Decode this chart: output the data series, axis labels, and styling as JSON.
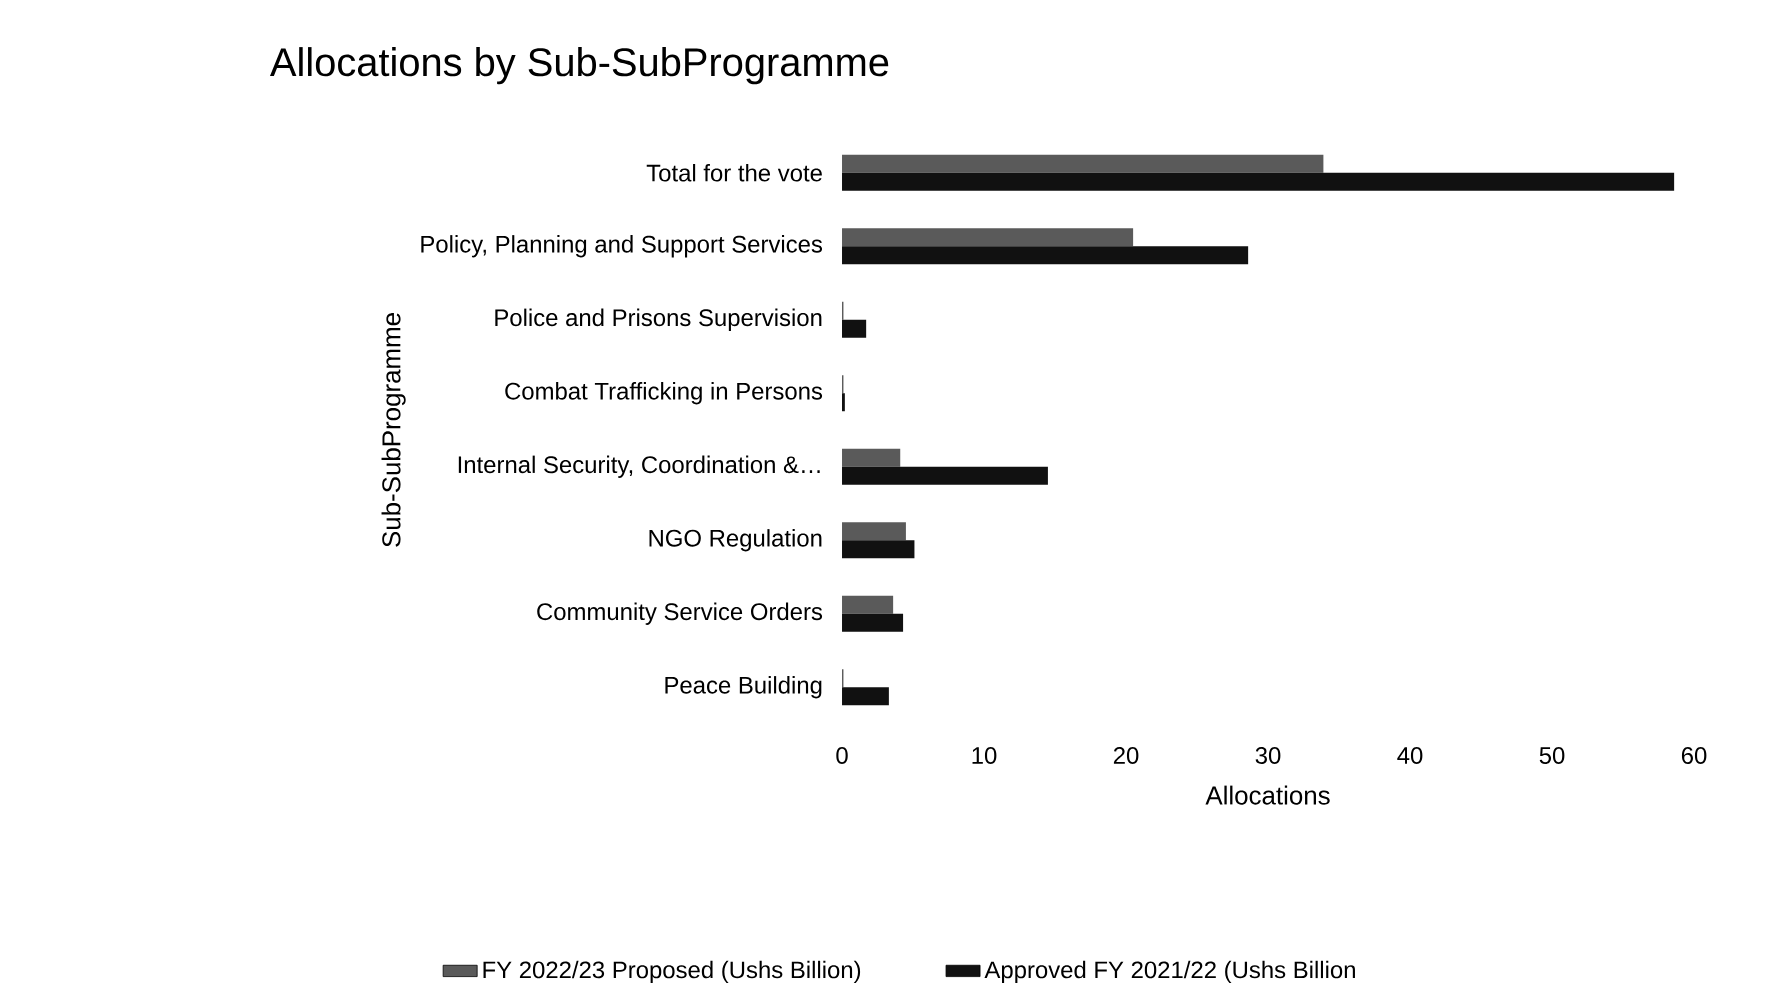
{
  "chart_data": {
    "type": "bar",
    "orientation": "horizontal",
    "title": "Allocations by Sub-SubProgramme",
    "xlabel": "Allocations",
    "ylabel": "Sub-SubProgramme",
    "categories": [
      "Total for the vote",
      "Policy, Planning and Support Services",
      "Police and Prisons Supervision",
      "Combat Trafficking in Persons",
      "Internal Security, Coordination &…",
      "NGO Regulation",
      "Community Service Orders",
      "Peace Building"
    ],
    "series": [
      {
        "name": "FY 2022/23 Proposed (Ushs Billion)",
        "color": "#5a5a5a",
        "values": [
          33.9,
          20.5,
          0.1,
          0.1,
          4.1,
          4.5,
          3.6,
          0.1
        ]
      },
      {
        "name": "Approved FY 2021/22 (Ushs Billion",
        "color": "#111111",
        "values": [
          58.6,
          28.6,
          1.7,
          0.2,
          14.5,
          5.1,
          4.3,
          3.3
        ]
      }
    ],
    "xlim": [
      0,
      60
    ],
    "xticks": [
      0,
      10,
      20,
      30,
      40,
      50,
      60
    ],
    "legend": "bottom"
  }
}
